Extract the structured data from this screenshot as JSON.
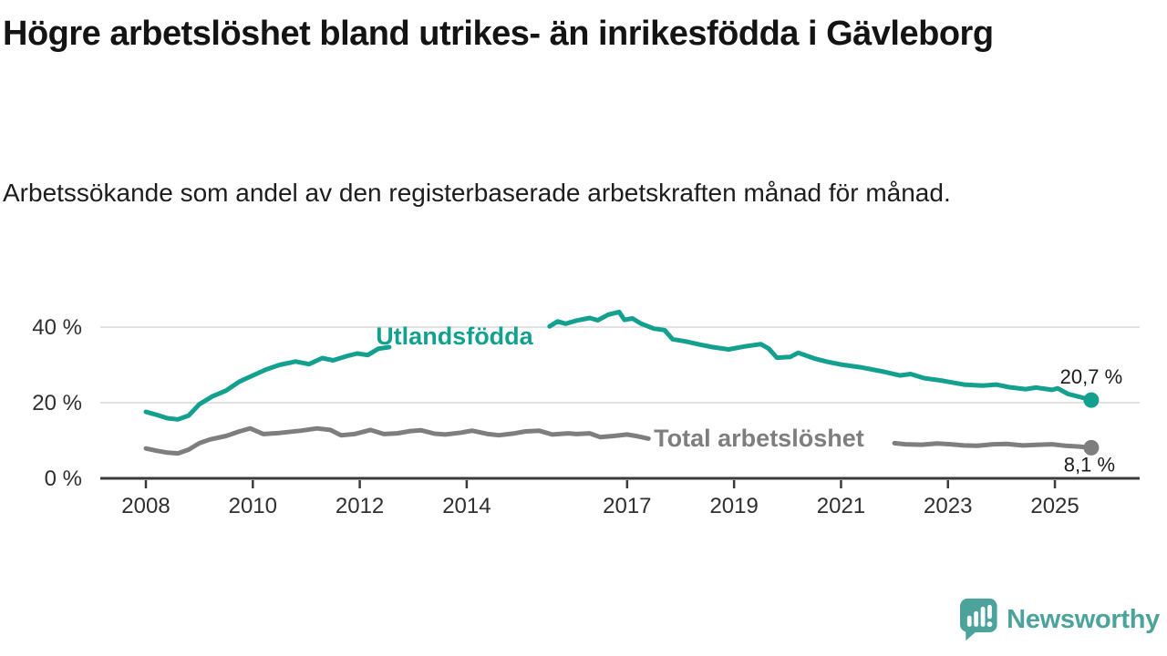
{
  "chart_data": {
    "type": "line",
    "title": "Högre arbetslöshet bland utrikes- än inrikesfödda i Gävleborg",
    "subtitle": "Arbetssökande som andel av den registerbaserade arbetskraften månad för månad.",
    "x_axis": {
      "tick_labels": [
        "2008",
        "2010",
        "2012",
        "2014",
        "2017",
        "2019",
        "2021",
        "2023",
        "2025"
      ],
      "tick_values": [
        2008,
        2010,
        2012,
        2014,
        2017,
        2019,
        2021,
        2023,
        2025
      ],
      "range": [
        2007.15,
        2026.6
      ]
    },
    "y_axis": {
      "tick_labels": [
        "0 %",
        "20 %",
        "40 %"
      ],
      "tick_values": [
        0,
        20,
        40
      ],
      "gridlines": [
        20,
        40
      ],
      "range": [
        0,
        49
      ],
      "unit": "%"
    },
    "grid": "horizontal-only",
    "legend": "inline-labels",
    "series": [
      {
        "name": "Utlandsfödda",
        "color": "#13a08f",
        "latest_value": 20.7,
        "latest_label": "20,7 %",
        "inline_label_pos": {
          "x": 2012.3,
          "y": 35.4
        },
        "label_line_gap": [
          2012.62,
          2015.48
        ],
        "end_label_offset": {
          "dx": 0,
          "dy": -18
        },
        "points": [
          [
            2008.0,
            17.6
          ],
          [
            2008.2,
            16.8
          ],
          [
            2008.4,
            15.9
          ],
          [
            2008.6,
            15.6
          ],
          [
            2008.8,
            16.6
          ],
          [
            2009.0,
            19.6
          ],
          [
            2009.25,
            21.7
          ],
          [
            2009.5,
            23.2
          ],
          [
            2009.75,
            25.6
          ],
          [
            2010.0,
            27.2
          ],
          [
            2010.25,
            28.8
          ],
          [
            2010.5,
            30.0
          ],
          [
            2010.8,
            30.9
          ],
          [
            2011.05,
            30.2
          ],
          [
            2011.3,
            31.8
          ],
          [
            2011.5,
            31.2
          ],
          [
            2011.75,
            32.3
          ],
          [
            2011.95,
            33.0
          ],
          [
            2012.15,
            32.6
          ],
          [
            2012.35,
            34.3
          ],
          [
            2012.55,
            34.7
          ],
          [
            2015.55,
            40.2
          ],
          [
            2015.7,
            41.5
          ],
          [
            2015.85,
            40.9
          ],
          [
            2016.05,
            41.7
          ],
          [
            2016.3,
            42.4
          ],
          [
            2016.45,
            41.8
          ],
          [
            2016.65,
            43.3
          ],
          [
            2016.85,
            44.0
          ],
          [
            2016.95,
            41.9
          ],
          [
            2017.1,
            42.3
          ],
          [
            2017.25,
            41.0
          ],
          [
            2017.5,
            39.6
          ],
          [
            2017.7,
            39.2
          ],
          [
            2017.85,
            36.8
          ],
          [
            2018.1,
            36.2
          ],
          [
            2018.35,
            35.4
          ],
          [
            2018.6,
            34.7
          ],
          [
            2018.9,
            34.1
          ],
          [
            2019.2,
            34.9
          ],
          [
            2019.5,
            35.5
          ],
          [
            2019.65,
            34.3
          ],
          [
            2019.8,
            31.9
          ],
          [
            2020.05,
            32.1
          ],
          [
            2020.2,
            33.2
          ],
          [
            2020.5,
            31.7
          ],
          [
            2020.75,
            30.8
          ],
          [
            2021.0,
            30.1
          ],
          [
            2021.4,
            29.3
          ],
          [
            2021.8,
            28.2
          ],
          [
            2022.1,
            27.2
          ],
          [
            2022.3,
            27.6
          ],
          [
            2022.55,
            26.5
          ],
          [
            2022.9,
            25.8
          ],
          [
            2023.3,
            24.8
          ],
          [
            2023.65,
            24.5
          ],
          [
            2023.9,
            24.8
          ],
          [
            2024.15,
            24.1
          ],
          [
            2024.45,
            23.6
          ],
          [
            2024.65,
            24.0
          ],
          [
            2024.95,
            23.4
          ],
          [
            2025.05,
            23.8
          ],
          [
            2025.25,
            22.3
          ],
          [
            2025.45,
            21.6
          ],
          [
            2025.68,
            20.7
          ]
        ]
      },
      {
        "name": "Total arbetslöshet",
        "color": "#7e7e7e",
        "latest_value": 8.1,
        "latest_label": "8,1 %",
        "inline_label_pos": {
          "x": 2017.5,
          "y": 8.4
        },
        "label_line_gap": [
          2017.42,
          2021.98
        ],
        "end_label_offset": {
          "dx": -2,
          "dy": 26
        },
        "points": [
          [
            2008.0,
            7.9
          ],
          [
            2008.2,
            7.3
          ],
          [
            2008.4,
            6.8
          ],
          [
            2008.6,
            6.6
          ],
          [
            2008.8,
            7.6
          ],
          [
            2009.0,
            9.3
          ],
          [
            2009.2,
            10.3
          ],
          [
            2009.5,
            11.2
          ],
          [
            2009.75,
            12.4
          ],
          [
            2009.95,
            13.2
          ],
          [
            2010.2,
            11.7
          ],
          [
            2010.5,
            12.0
          ],
          [
            2010.9,
            12.6
          ],
          [
            2011.2,
            13.2
          ],
          [
            2011.45,
            12.8
          ],
          [
            2011.65,
            11.4
          ],
          [
            2011.9,
            11.7
          ],
          [
            2012.2,
            12.8
          ],
          [
            2012.45,
            11.7
          ],
          [
            2012.7,
            11.9
          ],
          [
            2012.95,
            12.5
          ],
          [
            2013.15,
            12.7
          ],
          [
            2013.4,
            11.8
          ],
          [
            2013.6,
            11.6
          ],
          [
            2013.9,
            12.1
          ],
          [
            2014.1,
            12.6
          ],
          [
            2014.4,
            11.7
          ],
          [
            2014.6,
            11.4
          ],
          [
            2014.9,
            11.9
          ],
          [
            2015.1,
            12.4
          ],
          [
            2015.35,
            12.6
          ],
          [
            2015.6,
            11.6
          ],
          [
            2015.9,
            11.9
          ],
          [
            2016.05,
            11.7
          ],
          [
            2016.3,
            11.9
          ],
          [
            2016.5,
            10.9
          ],
          [
            2016.75,
            11.2
          ],
          [
            2017.0,
            11.6
          ],
          [
            2017.2,
            11.1
          ],
          [
            2017.4,
            10.5
          ],
          [
            2022.0,
            9.3
          ],
          [
            2022.2,
            9.0
          ],
          [
            2022.5,
            8.9
          ],
          [
            2022.8,
            9.2
          ],
          [
            2023.05,
            9.0
          ],
          [
            2023.3,
            8.7
          ],
          [
            2023.55,
            8.6
          ],
          [
            2023.85,
            9.0
          ],
          [
            2024.1,
            9.1
          ],
          [
            2024.4,
            8.7
          ],
          [
            2024.7,
            8.9
          ],
          [
            2024.95,
            9.0
          ],
          [
            2025.2,
            8.6
          ],
          [
            2025.45,
            8.4
          ],
          [
            2025.68,
            8.1
          ]
        ]
      }
    ]
  },
  "branding": {
    "logo_text": "Newsworthy",
    "logo_icon": "bar-chart-speech-bubble"
  },
  "colors": {
    "accent_teal": "#13a08f",
    "gray_series": "#7e7e7e",
    "grid": "#d9d9d9",
    "axis": "#3b3b3b",
    "tick_label": "#2f2f2f",
    "value_label": "#1a1a1a",
    "title": "#141414",
    "subtitle": "#1d1d1d",
    "logo": "#4ba39c",
    "background": "#ffffff"
  }
}
